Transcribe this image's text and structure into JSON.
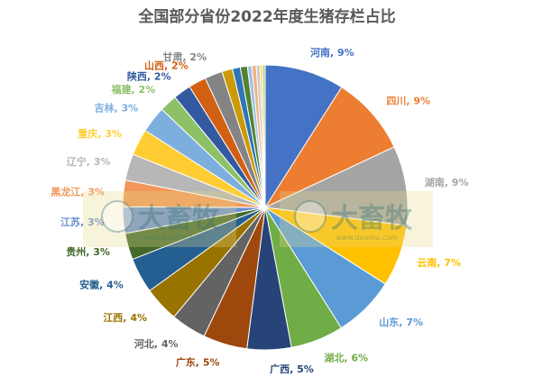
{
  "chart_data": {
    "type": "pie",
    "title": "全国部分省份2022年度生猪存栏占比",
    "slices": [
      {
        "label": "河南",
        "value": 9,
        "pct_text": "9%",
        "color": "#4472c4"
      },
      {
        "label": "四川",
        "value": 9,
        "pct_text": "9%",
        "color": "#ed7d31"
      },
      {
        "label": "湖南",
        "value": 9,
        "pct_text": "9%",
        "color": "#a5a5a5"
      },
      {
        "label": "云南",
        "value": 7,
        "pct_text": "7%",
        "color": "#ffc000"
      },
      {
        "label": "山东",
        "value": 7,
        "pct_text": "7%",
        "color": "#5b9bd5"
      },
      {
        "label": "湖北",
        "value": 6,
        "pct_text": "6%",
        "color": "#70ad47"
      },
      {
        "label": "广西",
        "value": 5,
        "pct_text": "5%",
        "color": "#264478"
      },
      {
        "label": "广东",
        "value": 5,
        "pct_text": "5%",
        "color": "#9e480e"
      },
      {
        "label": "河北",
        "value": 4,
        "pct_text": "4%",
        "color": "#636363"
      },
      {
        "label": "江西",
        "value": 4,
        "pct_text": "4%",
        "color": "#997300"
      },
      {
        "label": "安徽",
        "value": 4,
        "pct_text": "4%",
        "color": "#255e91"
      },
      {
        "label": "贵州",
        "value": 3,
        "pct_text": "3%",
        "color": "#43682b"
      },
      {
        "label": "江苏",
        "value": 3,
        "pct_text": "3%",
        "color": "#698ed0"
      },
      {
        "label": "黑龙江",
        "value": 3,
        "pct_text": "3%",
        "color": "#f1975a"
      },
      {
        "label": "辽宁",
        "value": 3,
        "pct_text": "3%",
        "color": "#b7b7b7"
      },
      {
        "label": "重庆",
        "value": 3,
        "pct_text": "3%",
        "color": "#ffcd33"
      },
      {
        "label": "吉林",
        "value": 3,
        "pct_text": "3%",
        "color": "#7cafdd"
      },
      {
        "label": "福建",
        "value": 2,
        "pct_text": "2%",
        "color": "#8cc168"
      },
      {
        "label": "陕西",
        "value": 2,
        "pct_text": "2%",
        "color": "#335aa1"
      },
      {
        "label": "山西",
        "value": 2,
        "pct_text": "2%",
        "color": "#d26012"
      },
      {
        "label": "甘肃",
        "value": 2,
        "pct_text": "2%",
        "color": "#848484"
      },
      {
        "label": "",
        "value": 1.2,
        "pct_text": "",
        "color": "#cc9a06"
      },
      {
        "label": "",
        "value": 0.9,
        "pct_text": "",
        "color": "#2e75b6"
      },
      {
        "label": "",
        "value": 0.8,
        "pct_text": "",
        "color": "#548235"
      },
      {
        "label": "",
        "value": 0.5,
        "pct_text": "",
        "color": "#9dc3e6"
      },
      {
        "label": "",
        "value": 0.5,
        "pct_text": "",
        "color": "#f4b183"
      },
      {
        "label": "",
        "value": 0.4,
        "pct_text": "",
        "color": "#c9c9c9"
      },
      {
        "label": "",
        "value": 0.3,
        "pct_text": "",
        "color": "#ffd966"
      },
      {
        "label": "",
        "value": 0.3,
        "pct_text": "",
        "color": "#a9d18e"
      }
    ]
  },
  "watermark": {
    "brand": "大畜牧",
    "url": "www.dxumu.com"
  }
}
